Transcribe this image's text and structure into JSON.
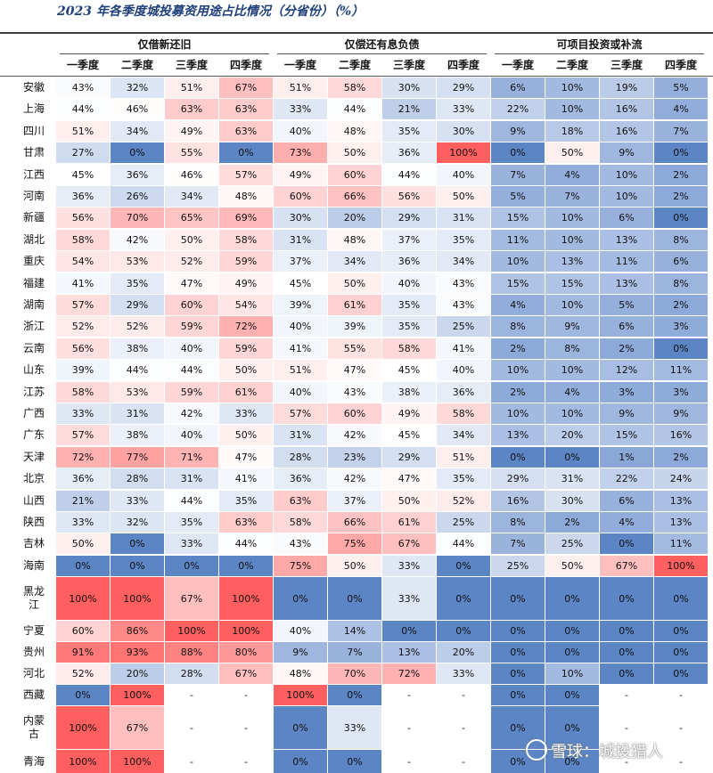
{
  "title": "2023 年各季度城投募资用途占比情况（分省份）（%）",
  "groups": [
    "仅借新还旧",
    "仅偿还有息负债",
    "可项目投资或补流"
  ],
  "quarters": [
    "一季度",
    "二季度",
    "三季度",
    "四季度"
  ],
  "watermark": "雪球：城投猎人",
  "rows": [
    {
      "p": "安徽",
      "v": [
        "43%",
        "32%",
        "51%",
        "67%",
        "51%",
        "58%",
        "30%",
        "29%",
        "6%",
        "10%",
        "19%",
        "5%"
      ]
    },
    {
      "p": "上海",
      "v": [
        "44%",
        "46%",
        "63%",
        "63%",
        "33%",
        "44%",
        "21%",
        "33%",
        "22%",
        "10%",
        "16%",
        "4%"
      ]
    },
    {
      "p": "四川",
      "v": [
        "51%",
        "34%",
        "49%",
        "63%",
        "40%",
        "48%",
        "35%",
        "30%",
        "9%",
        "18%",
        "16%",
        "7%"
      ]
    },
    {
      "p": "甘肃",
      "v": [
        "27%",
        "0%",
        "55%",
        "0%",
        "73%",
        "50%",
        "36%",
        "100%",
        "0%",
        "50%",
        "9%",
        "0%"
      ]
    },
    {
      "p": "江西",
      "v": [
        "45%",
        "36%",
        "46%",
        "57%",
        "49%",
        "60%",
        "44%",
        "40%",
        "7%",
        "4%",
        "10%",
        "2%"
      ]
    },
    {
      "p": "河南",
      "v": [
        "36%",
        "26%",
        "34%",
        "48%",
        "60%",
        "66%",
        "56%",
        "50%",
        "5%",
        "7%",
        "10%",
        "2%"
      ]
    },
    {
      "p": "新疆",
      "v": [
        "56%",
        "70%",
        "65%",
        "69%",
        "30%",
        "20%",
        "29%",
        "31%",
        "15%",
        "10%",
        "6%",
        "0%"
      ]
    },
    {
      "p": "湖北",
      "v": [
        "58%",
        "42%",
        "50%",
        "58%",
        "31%",
        "48%",
        "37%",
        "35%",
        "11%",
        "10%",
        "13%",
        "8%"
      ]
    },
    {
      "p": "重庆",
      "v": [
        "54%",
        "53%",
        "52%",
        "59%",
        "37%",
        "34%",
        "36%",
        "34%",
        "10%",
        "13%",
        "11%",
        "6%"
      ]
    },
    {
      "p": "福建",
      "v": [
        "41%",
        "35%",
        "47%",
        "49%",
        "45%",
        "50%",
        "40%",
        "43%",
        "15%",
        "15%",
        "13%",
        "8%"
      ]
    },
    {
      "p": "湖南",
      "v": [
        "57%",
        "29%",
        "60%",
        "54%",
        "39%",
        "61%",
        "35%",
        "43%",
        "4%",
        "10%",
        "5%",
        "2%"
      ]
    },
    {
      "p": "浙江",
      "v": [
        "52%",
        "52%",
        "59%",
        "72%",
        "40%",
        "39%",
        "35%",
        "25%",
        "8%",
        "9%",
        "6%",
        "3%"
      ]
    },
    {
      "p": "云南",
      "v": [
        "56%",
        "38%",
        "40%",
        "59%",
        "41%",
        "55%",
        "58%",
        "41%",
        "2%",
        "8%",
        "2%",
        "0%"
      ]
    },
    {
      "p": "山东",
      "v": [
        "39%",
        "44%",
        "44%",
        "50%",
        "51%",
        "47%",
        "45%",
        "40%",
        "10%",
        "10%",
        "12%",
        "11%"
      ]
    },
    {
      "p": "江苏",
      "v": [
        "58%",
        "53%",
        "59%",
        "61%",
        "40%",
        "43%",
        "38%",
        "36%",
        "2%",
        "4%",
        "3%",
        "3%"
      ]
    },
    {
      "p": "广西",
      "v": [
        "33%",
        "31%",
        "42%",
        "33%",
        "57%",
        "60%",
        "49%",
        "58%",
        "10%",
        "10%",
        "9%",
        "9%"
      ]
    },
    {
      "p": "广东",
      "v": [
        "57%",
        "38%",
        "40%",
        "50%",
        "31%",
        "42%",
        "45%",
        "34%",
        "13%",
        "20%",
        "15%",
        "16%"
      ]
    },
    {
      "p": "天津",
      "v": [
        "72%",
        "77%",
        "71%",
        "47%",
        "28%",
        "23%",
        "29%",
        "51%",
        "0%",
        "0%",
        "1%",
        "2%"
      ]
    },
    {
      "p": "北京",
      "v": [
        "36%",
        "28%",
        "31%",
        "41%",
        "36%",
        "42%",
        "47%",
        "35%",
        "29%",
        "31%",
        "22%",
        "24%"
      ]
    },
    {
      "p": "山西",
      "v": [
        "21%",
        "33%",
        "44%",
        "35%",
        "63%",
        "37%",
        "50%",
        "52%",
        "16%",
        "30%",
        "6%",
        "13%"
      ]
    },
    {
      "p": "陕西",
      "v": [
        "33%",
        "32%",
        "35%",
        "63%",
        "58%",
        "66%",
        "61%",
        "25%",
        "8%",
        "2%",
        "4%",
        "13%"
      ]
    },
    {
      "p": "吉林",
      "v": [
        "50%",
        "0%",
        "33%",
        "44%",
        "43%",
        "75%",
        "67%",
        "44%",
        "7%",
        "25%",
        "0%",
        "11%"
      ]
    },
    {
      "p": "海南",
      "v": [
        "0%",
        "0%",
        "0%",
        "0%",
        "75%",
        "50%",
        "33%",
        "0%",
        "25%",
        "50%",
        "67%",
        "100%"
      ]
    },
    {
      "p": "黑龙江",
      "v": [
        "100%",
        "100%",
        "67%",
        "100%",
        "0%",
        "0%",
        "33%",
        "0%",
        "0%",
        "0%",
        "0%",
        "0%"
      ]
    },
    {
      "p": "宁夏",
      "v": [
        "60%",
        "86%",
        "100%",
        "100%",
        "40%",
        "14%",
        "0%",
        "0%",
        "0%",
        "0%",
        "0%",
        "0%"
      ]
    },
    {
      "p": "贵州",
      "v": [
        "91%",
        "93%",
        "88%",
        "80%",
        "9%",
        "7%",
        "13%",
        "20%",
        "0%",
        "0%",
        "0%",
        "0%"
      ]
    },
    {
      "p": "河北",
      "v": [
        "52%",
        "20%",
        "28%",
        "67%",
        "48%",
        "70%",
        "72%",
        "33%",
        "0%",
        "10%",
        "0%",
        "0%"
      ]
    },
    {
      "p": "西藏",
      "v": [
        "0%",
        "100%",
        "-",
        "-",
        "100%",
        "0%",
        "-",
        "-",
        "0%",
        "0%",
        "-",
        "-"
      ]
    },
    {
      "p": "内蒙古",
      "v": [
        "100%",
        "67%",
        "-",
        "-",
        "0%",
        "33%",
        "-",
        "-",
        "0%",
        "0%",
        "-",
        "-"
      ]
    },
    {
      "p": "青海",
      "v": [
        "100%",
        "100%",
        "-",
        "-",
        "0%",
        "0%",
        "-",
        "-",
        "0%",
        "0%",
        "-",
        "-"
      ]
    }
  ]
}
